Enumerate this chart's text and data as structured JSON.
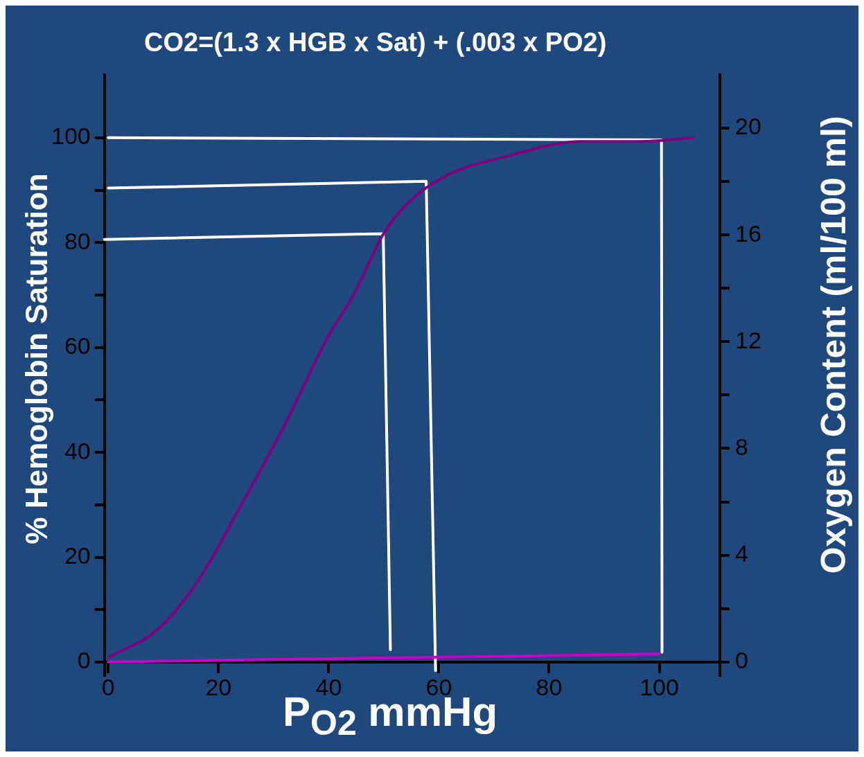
{
  "chart_data": {
    "type": "line",
    "title": "CO2=(1.3 x HGB x Sat) + (.003 x PO2)",
    "xlabel": "P$_{O2}$  mmHg",
    "ylabel": "% Hemoglobin Saturation",
    "y2label": "Oxygen Content (ml/100 ml)",
    "series": [
      {
        "color": "#800080",
        "x": [
          0.2,
          8.9,
          16.1,
          24.3,
          31.9,
          39.7,
          44.8,
          49.9,
          54.6,
          61.6,
          72.1,
          86,
          96.5,
          106.3
        ],
        "values": [
          1,
          6.2,
          15.2,
          30.3,
          45,
          61.7,
          70.6,
          81.6,
          87.8,
          92.9,
          96.4,
          99.3,
          99.3,
          100
        ]
      },
      {
        "color": "#cc00cc",
        "axis": "y2",
        "x": [
          0,
          100
        ],
        "values": [
          0,
          0.3
        ]
      },
      {
        "color": "#ffffff",
        "x": [
          -0.7,
          49.9,
          51.2
        ],
        "values": [
          80.6,
          81.7,
          2.4
        ]
      },
      {
        "color": "#ffffff",
        "x": [
          0,
          57.7,
          59.4
        ],
        "values": [
          90.4,
          91.7,
          -1.6
        ]
      },
      {
        "color": "#ffffff",
        "x": [
          0,
          100.4,
          100.5
        ],
        "values": [
          100,
          99.6,
          1.9
        ]
      }
    ],
    "xlim": [
      -0.7,
      111
    ],
    "xticks": [
      0,
      20,
      40,
      60,
      80,
      100
    ],
    "ylim": [
      -2.5,
      112
    ],
    "yticks": [
      0,
      {
        "value": 10,
        "label": null
      },
      20,
      {
        "value": 30,
        "label": null
      },
      40,
      {
        "value": 50,
        "label": null
      },
      60,
      {
        "value": 70,
        "label": null
      },
      80,
      {
        "value": 90,
        "label": null
      },
      100
    ],
    "y2lim": [
      -0.5,
      22
    ],
    "y2ticks": [
      0,
      {
        "value": 2,
        "label": null
      },
      4,
      {
        "value": 6,
        "label": null
      },
      8,
      {
        "value": 10,
        "label": null
      },
      12,
      {
        "value": 14,
        "label": null
      },
      16,
      {
        "value": 18,
        "label": null
      },
      20
    ],
    "grid": false,
    "legend": false,
    "marker": "none",
    "line_style": "solid"
  }
}
